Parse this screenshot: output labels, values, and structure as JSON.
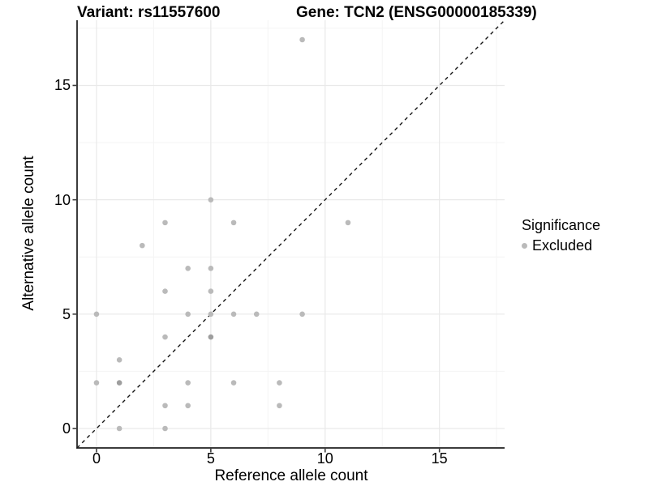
{
  "header": {
    "variant_title": "Variant: rs11557600",
    "gene_title": "Gene: TCN2 (ENSG00000185339)"
  },
  "chart_data": {
    "type": "scatter",
    "xlabel": "Reference allele count",
    "ylabel": "Alternative allele count",
    "xlim": [
      -0.85,
      17.85
    ],
    "ylim": [
      -0.85,
      17.85
    ],
    "x_ticks": [
      0,
      5,
      10,
      15
    ],
    "y_ticks": [
      0,
      5,
      10,
      15
    ],
    "x_minor_ticks": [
      2.5,
      7.5,
      12.5,
      17.5
    ],
    "y_minor_ticks": [
      2.5,
      7.5,
      12.5,
      17.5
    ],
    "grid": true,
    "identity_line": {
      "slope": 1,
      "intercept": 0,
      "style": "dashed"
    },
    "legend": {
      "title": "Significance",
      "position": "right",
      "items": [
        {
          "label": "Excluded",
          "color": "#bababa"
        }
      ]
    },
    "series": [
      {
        "name": "Excluded",
        "points": [
          {
            "x": 0,
            "y": 2
          },
          {
            "x": 0,
            "y": 5
          },
          {
            "x": 1,
            "y": 0
          },
          {
            "x": 1,
            "y": 2,
            "n": 2
          },
          {
            "x": 1,
            "y": 3
          },
          {
            "x": 2,
            "y": 8
          },
          {
            "x": 3,
            "y": 0
          },
          {
            "x": 3,
            "y": 1
          },
          {
            "x": 3,
            "y": 4
          },
          {
            "x": 3,
            "y": 6
          },
          {
            "x": 3,
            "y": 9
          },
          {
            "x": 4,
            "y": 1
          },
          {
            "x": 4,
            "y": 2
          },
          {
            "x": 4,
            "y": 5
          },
          {
            "x": 4,
            "y": 7
          },
          {
            "x": 5,
            "y": 4,
            "n": 2
          },
          {
            "x": 5,
            "y": 5
          },
          {
            "x": 5,
            "y": 6
          },
          {
            "x": 5,
            "y": 7
          },
          {
            "x": 5,
            "y": 10
          },
          {
            "x": 6,
            "y": 2
          },
          {
            "x": 6,
            "y": 5
          },
          {
            "x": 6,
            "y": 9
          },
          {
            "x": 7,
            "y": 5
          },
          {
            "x": 8,
            "y": 1
          },
          {
            "x": 8,
            "y": 2
          },
          {
            "x": 9,
            "y": 5
          },
          {
            "x": 9,
            "y": 17
          },
          {
            "x": 11,
            "y": 9
          }
        ]
      }
    ]
  },
  "colors": {
    "point": "#bababa",
    "point_overlap": "#9e9e9e",
    "grid_major": "#e9e9e9",
    "grid_minor": "#f4f4f4",
    "axis_line": "#3c3c3c",
    "diagonal": "#161616",
    "text": "#000000"
  }
}
